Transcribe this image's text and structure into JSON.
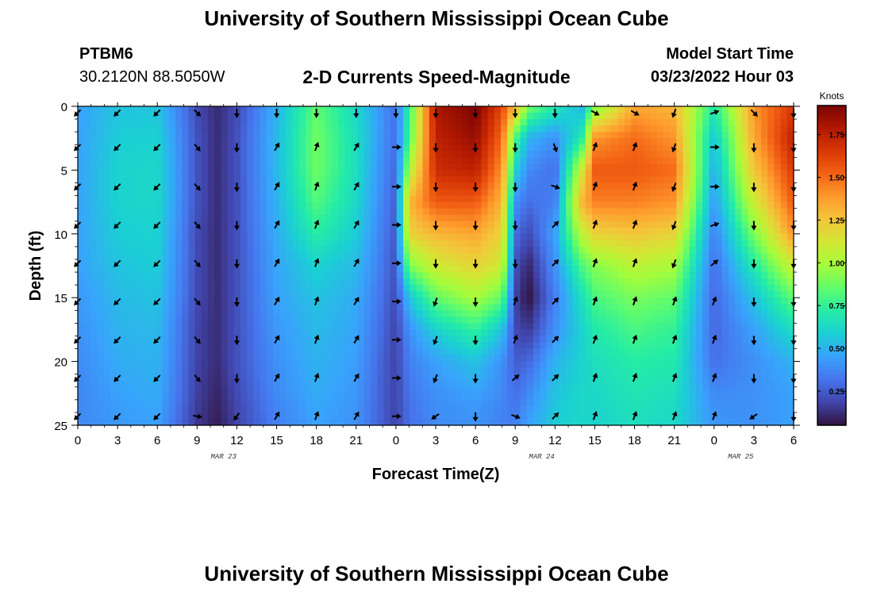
{
  "page": {
    "title": "University of Southern Mississippi Ocean Cube",
    "footer_title": "University of Southern Mississippi Ocean Cube"
  },
  "station": {
    "name": "PTBM6",
    "coords": "30.2120N  88.5050W"
  },
  "model": {
    "label": "Model Start Time",
    "datetime": "03/23/2022 Hour 03"
  },
  "chart_data": {
    "type": "heatmap",
    "title": "2-D Currents Speed-Magnitude",
    "xlabel": "Forecast Time(Z)",
    "ylabel": "Depth (ft)",
    "colorbar_label": "Knots",
    "x_tick_labels": [
      "0",
      "3",
      "6",
      "9",
      "12",
      "15",
      "18",
      "21",
      "0",
      "3",
      "6",
      "9",
      "12",
      "15",
      "18",
      "21",
      "0",
      "3",
      "6"
    ],
    "x_ticks_hours": [
      0,
      3,
      6,
      9,
      12,
      15,
      18,
      21,
      24,
      27,
      30,
      33,
      36,
      39,
      42,
      45,
      48,
      51,
      54
    ],
    "date_labels": [
      {
        "text": "MAR 23",
        "hour": 11
      },
      {
        "text": "MAR 24",
        "hour": 35
      },
      {
        "text": "MAR 25",
        "hour": 50
      }
    ],
    "y_ticks": [
      0,
      5,
      10,
      15,
      20,
      25
    ],
    "ylim": [
      0,
      25
    ],
    "xlim": [
      0,
      54
    ],
    "colorbar_ticks": [
      0.25,
      0.5,
      0.75,
      1.0,
      1.25,
      1.5,
      1.75
    ],
    "colorbar_tick_labels": [
      "0.25",
      "0.50",
      "0.75",
      "1.00",
      "1.25",
      "1.50",
      "1.75"
    ],
    "colorbar_range": [
      0.05,
      1.92
    ],
    "colormap": [
      "#30123b",
      "#4145ab",
      "#4675ed",
      "#39a2fc",
      "#1bcfd4",
      "#24eca6",
      "#61fc6c",
      "#a4fc3b",
      "#d1e834",
      "#f3c63a",
      "#fe9b2d",
      "#f36315",
      "#d93806",
      "#b11901",
      "#7a0402"
    ],
    "speed_grid_hours": [
      0,
      3,
      6,
      9,
      10.5,
      12,
      15,
      18,
      21,
      23,
      24,
      25,
      27,
      30,
      32,
      33,
      34,
      36,
      38,
      39,
      42,
      45,
      48,
      51,
      54
    ],
    "speed_grid_depths": [
      0,
      2.5,
      5,
      7.5,
      10,
      12.5,
      15,
      17.5,
      20,
      22.5,
      25
    ],
    "speed_grid": [
      [
        0.45,
        0.45,
        0.45,
        0.45,
        0.45,
        0.45,
        0.42,
        0.4,
        0.38,
        0.37,
        0.38
      ],
      [
        0.55,
        0.58,
        0.6,
        0.6,
        0.58,
        0.55,
        0.52,
        0.5,
        0.48,
        0.45,
        0.42
      ],
      [
        0.55,
        0.6,
        0.62,
        0.62,
        0.6,
        0.58,
        0.55,
        0.52,
        0.5,
        0.48,
        0.45
      ],
      [
        0.2,
        0.22,
        0.22,
        0.22,
        0.2,
        0.2,
        0.2,
        0.18,
        0.18,
        0.17,
        0.15
      ],
      [
        0.12,
        0.12,
        0.12,
        0.12,
        0.12,
        0.12,
        0.12,
        0.12,
        0.12,
        0.1,
        0.08
      ],
      [
        0.2,
        0.22,
        0.22,
        0.22,
        0.22,
        0.22,
        0.22,
        0.22,
        0.22,
        0.2,
        0.18
      ],
      [
        0.5,
        0.52,
        0.52,
        0.5,
        0.48,
        0.46,
        0.45,
        0.42,
        0.4,
        0.38,
        0.35
      ],
      [
        0.85,
        0.88,
        0.88,
        0.82,
        0.72,
        0.6,
        0.55,
        0.52,
        0.5,
        0.48,
        0.45
      ],
      [
        0.62,
        0.65,
        0.65,
        0.62,
        0.58,
        0.52,
        0.48,
        0.46,
        0.44,
        0.42,
        0.4
      ],
      [
        0.4,
        0.4,
        0.38,
        0.36,
        0.34,
        0.32,
        0.3,
        0.28,
        0.26,
        0.25,
        0.25
      ],
      [
        0.3,
        0.3,
        0.28,
        0.26,
        0.24,
        0.22,
        0.2,
        0.18,
        0.18,
        0.18,
        0.18
      ],
      [
        0.75,
        0.8,
        1.0,
        1.3,
        1.2,
        0.9,
        0.55,
        0.4,
        0.35,
        0.32,
        0.3
      ],
      [
        1.8,
        1.75,
        1.7,
        1.55,
        1.3,
        1.1,
        0.85,
        0.6,
        0.45,
        0.4,
        0.38
      ],
      [
        1.92,
        1.85,
        1.75,
        1.55,
        1.35,
        1.2,
        1.0,
        0.75,
        0.55,
        0.45,
        0.4
      ],
      [
        1.6,
        1.5,
        1.4,
        1.3,
        1.2,
        1.1,
        0.85,
        0.55,
        0.4,
        0.38,
        0.35
      ],
      [
        1.3,
        0.8,
        0.6,
        0.4,
        0.3,
        0.22,
        0.18,
        0.2,
        0.25,
        0.3,
        0.35
      ],
      [
        0.9,
        0.5,
        0.38,
        0.3,
        0.2,
        0.1,
        0.05,
        0.15,
        0.28,
        0.38,
        0.45
      ],
      [
        0.7,
        0.4,
        0.3,
        0.35,
        0.45,
        0.4,
        0.35,
        0.4,
        0.5,
        0.55,
        0.58
      ],
      [
        0.5,
        0.7,
        1.1,
        1.3,
        1.05,
        0.8,
        0.65,
        0.6,
        0.6,
        0.62,
        0.62
      ],
      [
        0.9,
        1.4,
        1.55,
        1.45,
        1.2,
        0.92,
        0.8,
        0.7,
        0.65,
        0.62,
        0.6
      ],
      [
        1.35,
        1.5,
        1.55,
        1.45,
        1.25,
        1.05,
        0.9,
        0.8,
        0.72,
        0.68,
        0.65
      ],
      [
        1.3,
        1.4,
        1.5,
        1.4,
        1.2,
        1.0,
        0.85,
        0.75,
        0.7,
        0.65,
        0.62
      ],
      [
        0.7,
        0.55,
        0.48,
        0.42,
        0.35,
        0.3,
        0.28,
        0.28,
        0.3,
        0.38,
        0.42
      ],
      [
        1.4,
        1.35,
        1.25,
        1.1,
        0.9,
        0.7,
        0.55,
        0.45,
        0.4,
        0.4,
        0.4
      ],
      [
        1.65,
        1.75,
        1.65,
        1.55,
        1.4,
        1.1,
        0.85,
        0.65,
        0.5,
        0.45,
        0.45
      ]
    ],
    "arrow_hours": [
      0,
      3,
      6,
      9,
      12,
      15,
      18,
      21,
      24,
      27,
      30,
      33,
      36,
      39,
      42,
      45,
      48,
      51,
      54
    ],
    "arrow_depths": [
      0.5,
      3.2,
      6.3,
      9.3,
      12.3,
      15.3,
      18.3,
      21.3,
      24.3
    ],
    "arrow_directions_deg": [
      [
        225,
        225,
        225,
        225,
        225,
        225,
        225,
        225,
        225
      ],
      [
        225,
        225,
        225,
        225,
        225,
        225,
        225,
        225,
        225
      ],
      [
        225,
        225,
        225,
        225,
        225,
        225,
        225,
        225,
        225
      ],
      [
        135,
        140,
        140,
        140,
        140,
        140,
        140,
        140,
        100
      ],
      [
        180,
        180,
        180,
        180,
        180,
        180,
        180,
        180,
        215
      ],
      [
        180,
        30,
        30,
        30,
        30,
        30,
        30,
        30,
        30
      ],
      [
        180,
        20,
        20,
        20,
        20,
        20,
        20,
        20,
        20
      ],
      [
        180,
        30,
        30,
        30,
        30,
        30,
        30,
        30,
        30
      ],
      [
        180,
        90,
        90,
        90,
        90,
        90,
        90,
        90,
        90
      ],
      [
        180,
        180,
        180,
        180,
        180,
        200,
        200,
        200,
        235
      ],
      [
        180,
        180,
        180,
        180,
        180,
        180,
        180,
        180,
        180
      ],
      [
        180,
        180,
        180,
        180,
        180,
        20,
        20,
        50,
        110
      ],
      [
        180,
        160,
        110,
        45,
        45,
        45,
        45,
        45,
        45
      ],
      [
        120,
        20,
        20,
        20,
        20,
        20,
        20,
        20,
        20
      ],
      [
        120,
        20,
        20,
        20,
        20,
        20,
        20,
        20,
        20
      ],
      [
        200,
        200,
        200,
        200,
        200,
        20,
        20,
        20,
        20
      ],
      [
        70,
        90,
        90,
        70,
        50,
        20,
        20,
        20,
        20
      ],
      [
        135,
        180,
        180,
        180,
        180,
        180,
        180,
        180,
        235
      ],
      [
        180,
        180,
        180,
        180,
        180,
        180,
        180,
        180,
        180
      ]
    ]
  }
}
